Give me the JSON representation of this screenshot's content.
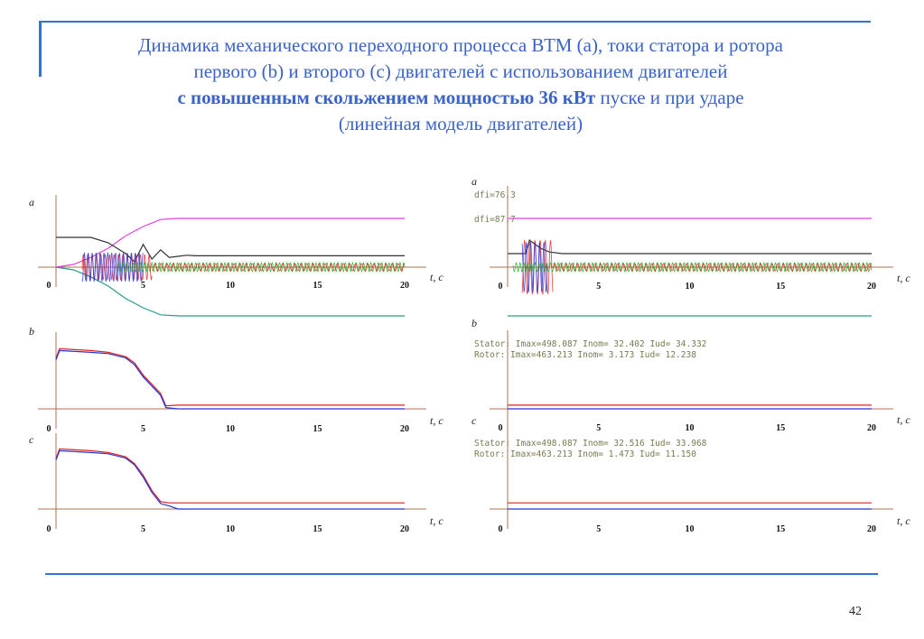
{
  "title": {
    "line1": "Динамика механического переходного процесса ВТМ (а), токи статора и ротора",
    "line2": "первого (b) и второго (с) двигателей с использованием двигателей",
    "line3_bold": "с повышенным скольжением мощностью 36 кВт",
    "line3_rest": " пуске и при ударе",
    "line4": "(линейная модель двигателей)"
  },
  "page_number": "42",
  "colors": {
    "frame": "#2e75d6",
    "title": "#3b63c8",
    "magenta": "#e040e0",
    "black": "#333333",
    "teal": "#2a9a88",
    "green": "#22aa22",
    "red": "#e02020",
    "blue": "#2233dd",
    "axis": "#b07050"
  },
  "axis_label": "t, c",
  "x_ticks": [
    "0",
    "5",
    "10",
    "15",
    "20"
  ],
  "chart_data": [
    {
      "type": "line",
      "panel": "left-a",
      "letter": "a",
      "xlim": [
        0,
        20
      ],
      "series": [
        {
          "color": "magenta",
          "x": [
            0,
            1,
            2,
            3,
            4,
            5,
            6,
            7,
            20
          ],
          "y": [
            0,
            0.05,
            0.18,
            0.35,
            0.58,
            0.75,
            0.88,
            0.9,
            0.9
          ]
        },
        {
          "color": "black",
          "x": [
            0,
            2,
            3,
            4,
            4.5,
            5,
            5.5,
            6,
            6.5,
            7,
            7.5,
            8,
            20
          ],
          "y": [
            0.55,
            0.55,
            0.45,
            0.25,
            0.1,
            0.42,
            0.15,
            0.32,
            0.18,
            0.2,
            0.22,
            0.21,
            0.21
          ]
        },
        {
          "color": "teal",
          "x": [
            0,
            1,
            2,
            3,
            4,
            5,
            6,
            7,
            20
          ],
          "y": [
            0,
            -0.05,
            -0.18,
            -0.35,
            -0.58,
            -0.75,
            -0.88,
            -0.9,
            -0.9
          ]
        }
      ]
    },
    {
      "type": "line",
      "panel": "left-b",
      "letter": "b",
      "xlim": [
        0,
        20
      ],
      "series": [
        {
          "color": "red",
          "x": [
            0,
            0.2,
            2,
            3,
            4,
            4.5,
            5,
            5.5,
            6,
            6.3,
            7,
            20
          ],
          "y": [
            0.82,
            0.98,
            0.95,
            0.92,
            0.85,
            0.75,
            0.55,
            0.4,
            0.25,
            0.05,
            0.06,
            0.06
          ]
        },
        {
          "color": "blue",
          "x": [
            0,
            0.2,
            2,
            3,
            4,
            4.5,
            5,
            5.5,
            6,
            6.3,
            7,
            20
          ],
          "y": [
            0.8,
            0.95,
            0.92,
            0.9,
            0.83,
            0.72,
            0.52,
            0.37,
            0.22,
            0.02,
            0.0,
            0.0
          ]
        }
      ]
    },
    {
      "type": "line",
      "panel": "left-c",
      "letter": "c",
      "xlim": [
        0,
        20
      ],
      "series": [
        {
          "color": "red",
          "x": [
            0,
            0.2,
            2,
            3,
            4,
            4.5,
            5,
            5.5,
            6,
            6.5,
            7,
            20
          ],
          "y": [
            0.82,
            0.98,
            0.95,
            0.92,
            0.85,
            0.74,
            0.55,
            0.3,
            0.12,
            0.1,
            0.1,
            0.1
          ]
        },
        {
          "color": "blue",
          "x": [
            0,
            0.2,
            2,
            3,
            4,
            4.5,
            5,
            5.5,
            6,
            6.5,
            7,
            20
          ],
          "y": [
            0.8,
            0.95,
            0.92,
            0.9,
            0.83,
            0.72,
            0.52,
            0.27,
            0.09,
            0.05,
            0.0,
            0.0
          ]
        }
      ]
    },
    {
      "type": "line",
      "panel": "right-a",
      "letter": "a",
      "xlim": [
        0,
        20
      ],
      "annotations": [
        "dfi=76.3",
        "dfi=87.7"
      ],
      "series": [
        {
          "color": "magenta",
          "x": [
            0,
            20
          ],
          "y": [
            0.9,
            0.9
          ]
        },
        {
          "color": "black",
          "x": [
            0,
            1,
            1.2,
            1.8,
            2.3,
            3,
            20
          ],
          "y": [
            0.25,
            0.25,
            0.5,
            0.35,
            0.28,
            0.25,
            0.25
          ]
        },
        {
          "color": "teal",
          "x": [
            0,
            20
          ],
          "y": [
            -0.9,
            -0.9
          ]
        }
      ]
    },
    {
      "type": "line",
      "panel": "right-b",
      "letter": "b",
      "xlim": [
        0,
        20
      ],
      "annotations": [
        "Stator: Imax=498.087 Inom= 32.402 Iud= 34.332",
        "Rotor: Imax=463.213 Inom=  3.173 Iud= 12.238"
      ],
      "series": [
        {
          "color": "red",
          "x": [
            0,
            20
          ],
          "y": [
            0.06,
            0.06
          ]
        },
        {
          "color": "blue",
          "x": [
            0,
            20
          ],
          "y": [
            0.0,
            0.0
          ]
        }
      ]
    },
    {
      "type": "line",
      "panel": "right-c",
      "letter": "c",
      "xlim": [
        0,
        20
      ],
      "annotations": [
        "Stator: Imax=498.087 Inom= 32.516 Iud= 33.968",
        "Rotor: Imax=463.213 Inom=  1.473 Iud= 11.150"
      ],
      "series": [
        {
          "color": "red",
          "x": [
            0,
            20
          ],
          "y": [
            0.1,
            0.1
          ]
        },
        {
          "color": "blue",
          "x": [
            0,
            20
          ],
          "y": [
            0.0,
            0.0
          ]
        }
      ]
    }
  ]
}
